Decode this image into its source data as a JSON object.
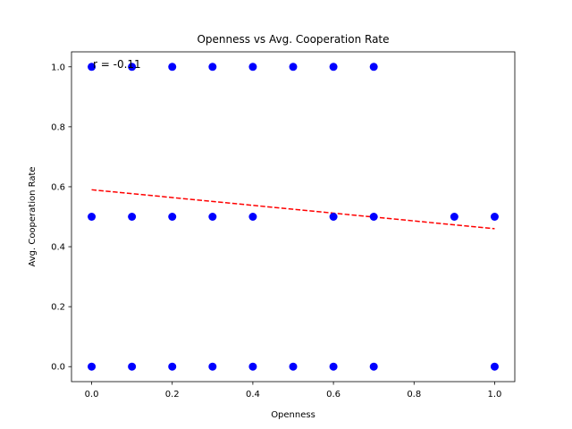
{
  "chart_data": {
    "type": "scatter",
    "title": "Openness vs Avg. Cooperation Rate",
    "xlabel": "Openness",
    "ylabel": "Avg. Cooperation Rate",
    "xlim": [
      -0.05,
      1.05
    ],
    "ylim": [
      -0.05,
      1.05
    ],
    "xticks": [
      0.0,
      0.2,
      0.4,
      0.6,
      0.8,
      1.0
    ],
    "yticks": [
      0.0,
      0.2,
      0.4,
      0.6,
      0.8,
      1.0
    ],
    "xtick_labels": [
      "0.0",
      "0.2",
      "0.4",
      "0.6",
      "0.8",
      "1.0"
    ],
    "ytick_labels": [
      "0.0",
      "0.2",
      "0.4",
      "0.6",
      "0.8",
      "1.0"
    ],
    "grid": false,
    "point_color": "#0000ff",
    "trend_color": "#ff0000",
    "points": [
      {
        "x": 0.0,
        "y": 1.0
      },
      {
        "x": 0.1,
        "y": 1.0
      },
      {
        "x": 0.2,
        "y": 1.0
      },
      {
        "x": 0.3,
        "y": 1.0
      },
      {
        "x": 0.4,
        "y": 1.0
      },
      {
        "x": 0.5,
        "y": 1.0
      },
      {
        "x": 0.6,
        "y": 1.0
      },
      {
        "x": 0.7,
        "y": 1.0
      },
      {
        "x": 0.0,
        "y": 0.5
      },
      {
        "x": 0.1,
        "y": 0.5
      },
      {
        "x": 0.2,
        "y": 0.5
      },
      {
        "x": 0.3,
        "y": 0.5
      },
      {
        "x": 0.4,
        "y": 0.5
      },
      {
        "x": 0.6,
        "y": 0.5
      },
      {
        "x": 0.7,
        "y": 0.5
      },
      {
        "x": 0.9,
        "y": 0.5
      },
      {
        "x": 1.0,
        "y": 0.5
      },
      {
        "x": 0.0,
        "y": 0.0
      },
      {
        "x": 0.1,
        "y": 0.0
      },
      {
        "x": 0.2,
        "y": 0.0
      },
      {
        "x": 0.3,
        "y": 0.0
      },
      {
        "x": 0.4,
        "y": 0.0
      },
      {
        "x": 0.5,
        "y": 0.0
      },
      {
        "x": 0.6,
        "y": 0.0
      },
      {
        "x": 0.7,
        "y": 0.0
      },
      {
        "x": 1.0,
        "y": 0.0
      }
    ],
    "trend_line": {
      "x": [
        0.0,
        1.0
      ],
      "y": [
        0.59,
        0.46
      ]
    },
    "annotation": "r = -0.11"
  }
}
